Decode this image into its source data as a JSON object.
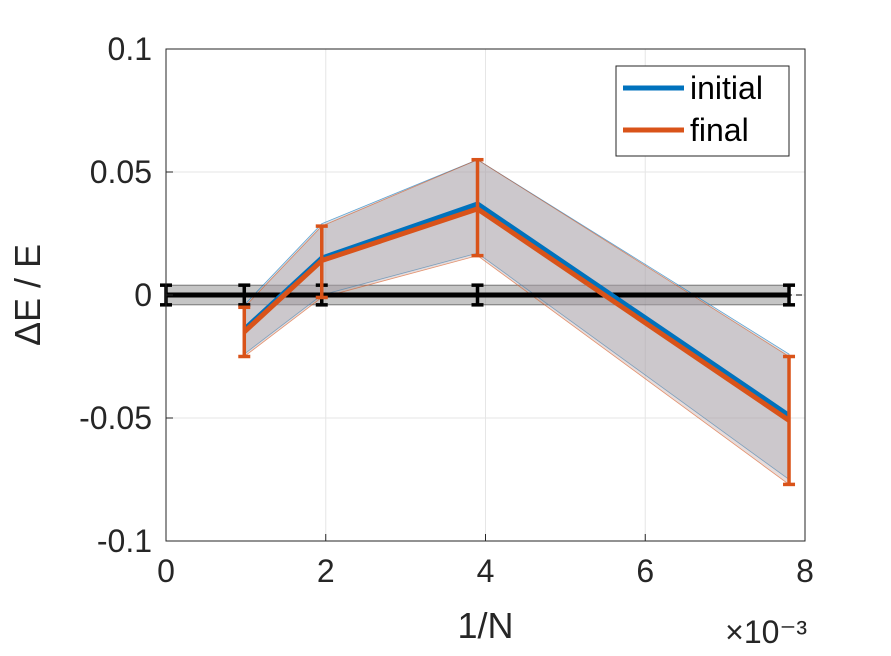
{
  "chart_data": {
    "type": "line",
    "xlabel": "1/N",
    "ylabel": "ΔE / E",
    "x_multiplier": "×10⁻³",
    "xlim": [
      0,
      8
    ],
    "ylim": [
      -0.1,
      0.1
    ],
    "x_ticks": [
      0,
      2,
      4,
      6,
      8
    ],
    "x_tick_labels": [
      "0",
      "2",
      "4",
      "6",
      "8"
    ],
    "y_ticks": [
      -0.1,
      -0.05,
      0,
      0.05,
      0.1
    ],
    "y_tick_labels": [
      "-0.1",
      "-0.05",
      "0",
      "0.05",
      "0.1"
    ],
    "grid": true,
    "legend_position": "top-right",
    "series": [
      {
        "name": "initial",
        "color": "#0072BD",
        "x": [
          0.98,
          1.95,
          3.9,
          7.8
        ],
        "y": [
          -0.014,
          0.015,
          0.037,
          -0.049
        ],
        "lower": [
          -0.024,
          0.0,
          0.017,
          -0.075
        ],
        "upper": [
          -0.004,
          0.029,
          0.055,
          -0.024
        ]
      },
      {
        "name": "final",
        "color": "#D95319",
        "x": [
          0.98,
          1.95,
          3.9,
          7.8
        ],
        "y": [
          -0.015,
          0.014,
          0.035,
          -0.051
        ],
        "lower": [
          -0.025,
          -0.001,
          0.016,
          -0.077
        ],
        "upper": [
          -0.005,
          0.028,
          0.055,
          -0.025
        ]
      },
      {
        "name": "",
        "color": "#000000",
        "x": [
          0,
          0.98,
          1.95,
          3.9,
          7.8
        ],
        "y": [
          0,
          0,
          0,
          0,
          0
        ],
        "lower": [
          -0.004,
          -0.004,
          -0.004,
          -0.004,
          -0.004
        ],
        "upper": [
          0.004,
          0.004,
          0.004,
          0.004,
          0.004
        ]
      }
    ],
    "reference_line": {
      "y": 0,
      "style": "dashed"
    }
  }
}
